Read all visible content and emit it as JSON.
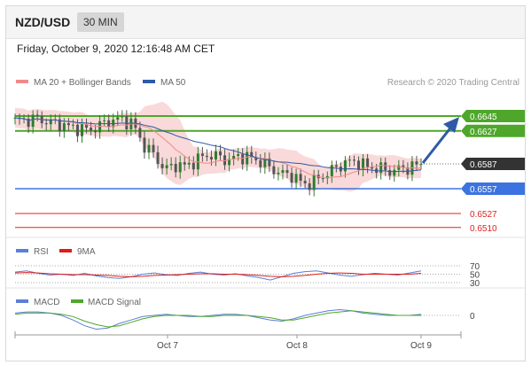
{
  "header": {
    "symbol": "NZD/USD",
    "timeframe": "30 MIN",
    "datetime": "Friday, October 9, 2020 12:16:48 AM CET"
  },
  "main_panel": {
    "legend": [
      {
        "name": "MA 20 + Bollinger Bands",
        "color": "#f08a8a"
      },
      {
        "name": "MA 50",
        "color": "#2e5aa8"
      }
    ],
    "attribution": "Research © 2020 Trading Central",
    "colors": {
      "up": "#2e7d2e",
      "down": "#555555",
      "resistance": "#4ea72a",
      "pivot": "#3b73e0",
      "support": "#e02020",
      "arrow": "#2e5aa8",
      "band": "#f7c9c9"
    }
  },
  "rsi_panel": {
    "legend": [
      {
        "name": "RSI",
        "color": "#5b7fd6"
      },
      {
        "name": "9MA",
        "color": "#e01b1b"
      }
    ]
  },
  "macd_panel": {
    "legend": [
      {
        "name": "MACD",
        "color": "#5b7fd6"
      },
      {
        "name": "MACD Signal",
        "color": "#4ea72a"
      }
    ]
  },
  "chart_data": [
    {
      "type": "line",
      "panel": "price",
      "x": [
        "Oct 7",
        "Oct 8",
        "Oct 9"
      ],
      "levels": [
        {
          "value": 0.6645,
          "kind": "resistance",
          "label": "0.6645"
        },
        {
          "value": 0.6627,
          "kind": "resistance",
          "label": "0.6627"
        },
        {
          "value": 0.6587,
          "kind": "last_price",
          "label": "0.6587"
        },
        {
          "value": 0.6557,
          "kind": "pivot",
          "label": "0.6557"
        },
        {
          "value": 0.6527,
          "kind": "support",
          "label": "0.6527"
        },
        {
          "value": 0.651,
          "kind": "support",
          "label": "0.6510"
        }
      ],
      "price_series": [
        0.6639,
        0.664,
        0.6642,
        0.6638,
        0.6636,
        0.6632,
        0.663,
        0.6628,
        0.6634,
        0.664,
        0.6641,
        0.6636,
        0.661,
        0.6598,
        0.658,
        0.6586,
        0.6584,
        0.6592,
        0.6598,
        0.6596,
        0.6591,
        0.6597,
        0.6594,
        0.659,
        0.6581,
        0.6575,
        0.6573,
        0.6562,
        0.6566,
        0.6574,
        0.6582,
        0.6589,
        0.659,
        0.6583,
        0.6582,
        0.6578,
        0.6581,
        0.6583,
        0.6587
      ],
      "ylim": [
        0.65,
        0.667
      ]
    },
    {
      "type": "line",
      "panel": "rsi",
      "y_ticks": [
        70,
        50,
        30
      ],
      "series": [
        {
          "name": "RSI",
          "values": [
            55,
            58,
            52,
            48,
            50,
            47,
            52,
            46,
            42,
            40,
            44,
            50,
            53,
            49,
            47,
            52,
            55,
            50,
            48,
            51,
            46,
            42,
            36,
            44,
            52,
            56,
            58,
            53,
            48,
            45,
            49,
            52,
            50,
            48,
            53,
            58
          ]
        },
        {
          "name": "9MA",
          "values": [
            53,
            54,
            53,
            51,
            50,
            49,
            49,
            48,
            47,
            45,
            44,
            45,
            47,
            48,
            49,
            50,
            51,
            51,
            50,
            50,
            49,
            47,
            45,
            44,
            45,
            47,
            50,
            52,
            53,
            52,
            50,
            50,
            50,
            50,
            50,
            52
          ]
        }
      ]
    },
    {
      "type": "line",
      "panel": "macd",
      "y_ticks": [
        0
      ],
      "series": [
        {
          "name": "MACD",
          "values": [
            2,
            3,
            3,
            2,
            0,
            -4,
            -9,
            -12,
            -11,
            -7,
            -4,
            -1,
            0,
            1,
            0,
            -1,
            -1,
            0,
            1,
            1,
            0,
            -2,
            -4,
            -5,
            -3,
            0,
            2,
            4,
            5,
            4,
            2,
            1,
            0,
            0,
            0,
            1
          ]
        },
        {
          "name": "MACD Signal",
          "values": [
            1,
            2,
            2,
            2,
            1,
            -1,
            -5,
            -8,
            -10,
            -9,
            -6,
            -3,
            -1,
            0,
            0,
            0,
            -1,
            -1,
            0,
            0,
            0,
            -1,
            -2,
            -4,
            -4,
            -2,
            0,
            2,
            3,
            4,
            3,
            2,
            1,
            0,
            0,
            0
          ]
        }
      ]
    }
  ]
}
